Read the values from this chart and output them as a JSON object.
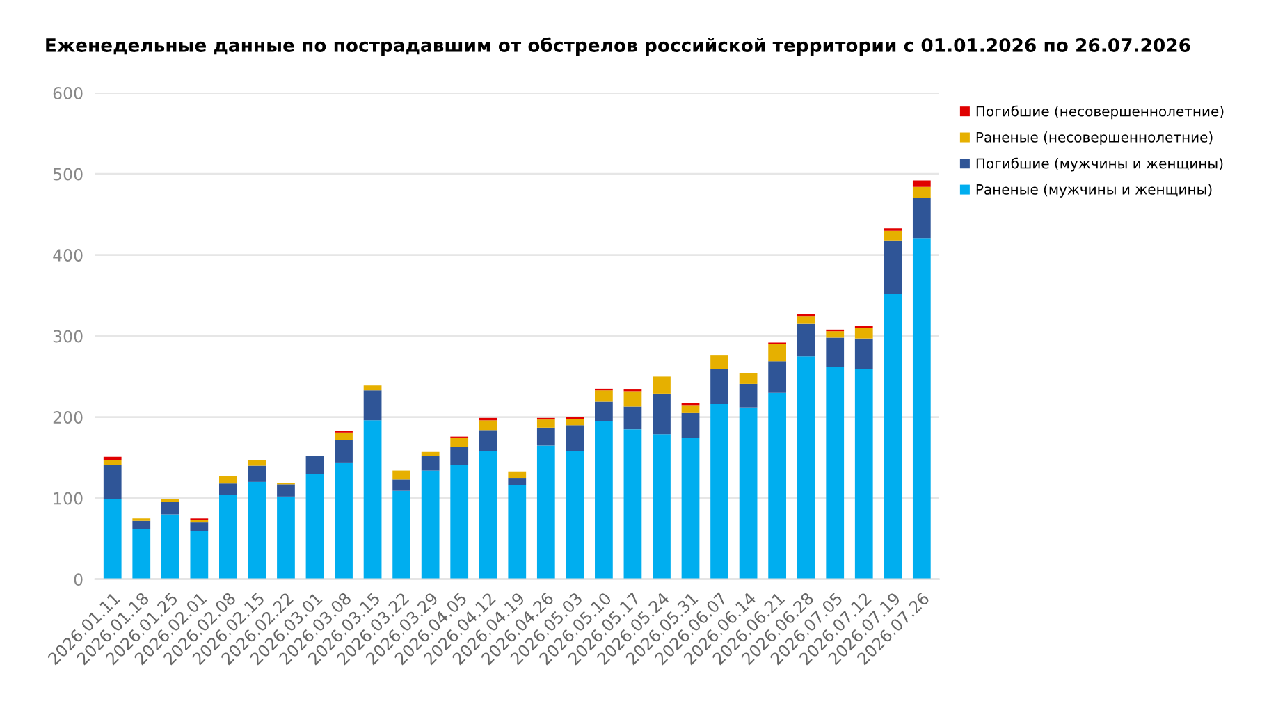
{
  "chart_data": {
    "type": "bar",
    "title": "Еженедельные данные по пострадавшим от обстрелов российской территории с 01.01.2026 по 26.07.2026",
    "categories": [
      "2026.01.11",
      "2026.01.18",
      "2026.01.25",
      "2026.02.01",
      "2026.02.08",
      "2026.02.15",
      "2026.02.22",
      "2026.03.01",
      "2026.03.08",
      "2026.03.15",
      "2026.03.22",
      "2026.03.29",
      "2026.04.05",
      "2026.04.12",
      "2026.04.19",
      "2026.04.26",
      "2026.05.03",
      "2026.05.10",
      "2026.05.17",
      "2026.05.24",
      "2026.05.31",
      "2026.06.07",
      "2026.06.14",
      "2026.06.21",
      "2026.06.28",
      "2026.07.05",
      "2026.07.12",
      "2026.07.19",
      "2026.07.26"
    ],
    "stacked": true,
    "series": [
      {
        "name": "Раненые (мужчины и женщины)",
        "color": "#00aeef",
        "values": [
          99,
          62,
          80,
          59,
          104,
          120,
          102,
          130,
          144,
          196,
          109,
          134,
          141,
          158,
          116,
          165,
          158,
          195,
          185,
          179,
          174,
          216,
          212,
          230,
          275,
          262,
          259,
          352,
          421
        ]
      },
      {
        "name": "Погибшие (мужчины и женщины)",
        "color": "#2f5597",
        "values": [
          42,
          10,
          15,
          11,
          14,
          20,
          15,
          22,
          28,
          37,
          14,
          18,
          22,
          26,
          9,
          22,
          32,
          24,
          28,
          50,
          31,
          43,
          29,
          39,
          40,
          36,
          38,
          66,
          49
        ]
      },
      {
        "name": "Раненые (несовершеннолетние)",
        "color": "#e6b000",
        "values": [
          6,
          3,
          4,
          3,
          9,
          7,
          2,
          0,
          9,
          6,
          11,
          5,
          11,
          12,
          8,
          10,
          8,
          14,
          19,
          21,
          9,
          17,
          13,
          21,
          9,
          8,
          13,
          12,
          14
        ]
      },
      {
        "name": "Погибшие (несовершеннолетние)",
        "color": "#e00000",
        "values": [
          4,
          0,
          0,
          2,
          0,
          0,
          0,
          0,
          2,
          0,
          0,
          0,
          2,
          3,
          0,
          2,
          2,
          2,
          2,
          0,
          3,
          0,
          0,
          2,
          3,
          2,
          3,
          3,
          8
        ]
      }
    ],
    "ylim": [
      0,
      600
    ],
    "yticks": [
      0,
      100,
      200,
      300,
      400,
      500,
      600
    ],
    "grid": "y",
    "legend": "top right"
  }
}
